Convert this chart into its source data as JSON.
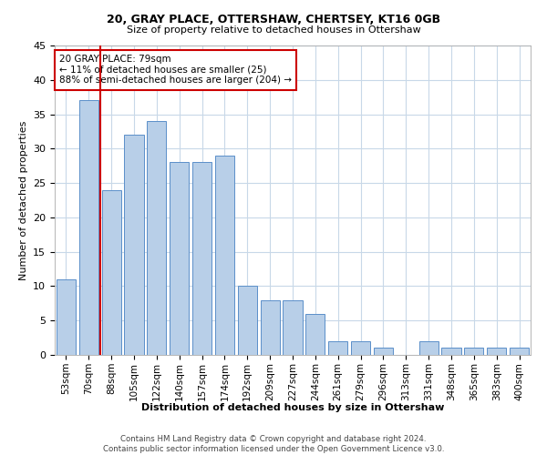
{
  "title1": "20, GRAY PLACE, OTTERSHAW, CHERTSEY, KT16 0GB",
  "title2": "Size of property relative to detached houses in Ottershaw",
  "xlabel": "Distribution of detached houses by size in Ottershaw",
  "ylabel": "Number of detached properties",
  "categories": [
    "53sqm",
    "70sqm",
    "88sqm",
    "105sqm",
    "122sqm",
    "140sqm",
    "157sqm",
    "174sqm",
    "192sqm",
    "209sqm",
    "227sqm",
    "244sqm",
    "261sqm",
    "279sqm",
    "296sqm",
    "313sqm",
    "331sqm",
    "348sqm",
    "365sqm",
    "383sqm",
    "400sqm"
  ],
  "values": [
    11,
    37,
    24,
    32,
    34,
    28,
    28,
    29,
    10,
    8,
    8,
    6,
    2,
    2,
    1,
    0,
    2,
    1,
    1,
    1,
    1
  ],
  "bar_color": "#b8cfe8",
  "bar_edge_color": "#5b8fc9",
  "vline_x": 1.5,
  "vline_color": "#cc0000",
  "annotation_text": "20 GRAY PLACE: 79sqm\n← 11% of detached houses are smaller (25)\n88% of semi-detached houses are larger (204) →",
  "annotation_box_color": "#ffffff",
  "annotation_box_edge": "#cc0000",
  "ylim": [
    0,
    45
  ],
  "yticks": [
    0,
    5,
    10,
    15,
    20,
    25,
    30,
    35,
    40,
    45
  ],
  "footer": "Contains HM Land Registry data © Crown copyright and database right 2024.\nContains public sector information licensed under the Open Government Licence v3.0.",
  "background_color": "#ffffff",
  "grid_color": "#c8d8e8"
}
